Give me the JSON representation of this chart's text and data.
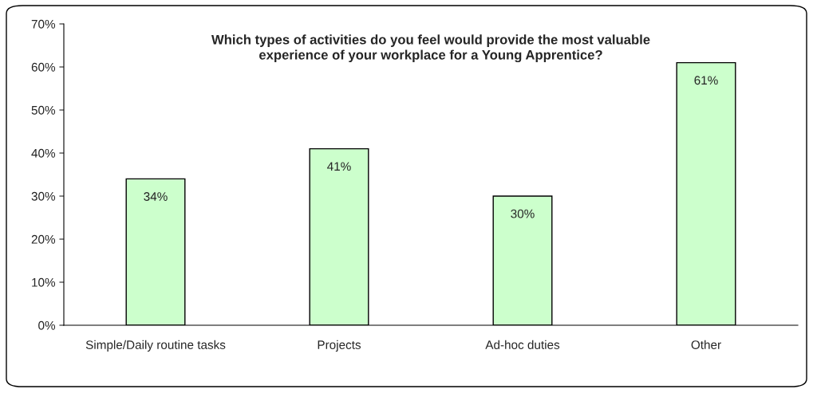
{
  "chart_data": {
    "type": "bar",
    "title": "Which types of activities do you feel would provide the most valuable\nexperience of your workplace for a Young Apprentice?",
    "categories": [
      "Simple/Daily routine tasks",
      "Projects",
      "Ad-hoc duties",
      "Other"
    ],
    "values": [
      34,
      41,
      30,
      61
    ],
    "value_labels": [
      "34%",
      "41%",
      "30%",
      "61%"
    ],
    "color": "#ccffcc",
    "ylim": [
      0,
      70
    ],
    "yticks": [
      {
        "value": 0,
        "label": "0%"
      },
      {
        "value": 10,
        "label": "10%"
      },
      {
        "value": 20,
        "label": "20%"
      },
      {
        "value": 30,
        "label": "30%"
      },
      {
        "value": 40,
        "label": "40%"
      },
      {
        "value": 50,
        "label": "50%"
      },
      {
        "value": 60,
        "label": "60%"
      },
      {
        "value": 70,
        "label": "70%"
      }
    ],
    "grid": false,
    "legend": false
  }
}
